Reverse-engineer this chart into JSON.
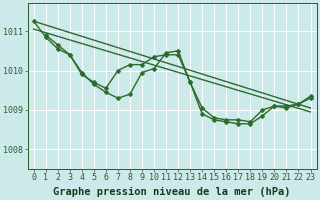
{
  "bg_color": "#cceaea",
  "grid_color": "#b0d8d8",
  "line_color": "#2d6a2d",
  "title": "Graphe pression niveau de la mer (hPa)",
  "xlim": [
    -0.5,
    23.5
  ],
  "ylim": [
    1007.5,
    1011.7
  ],
  "yticks": [
    1008,
    1009,
    1010,
    1011
  ],
  "xticks": [
    0,
    1,
    2,
    3,
    4,
    5,
    6,
    7,
    8,
    9,
    10,
    11,
    12,
    13,
    14,
    15,
    16,
    17,
    18,
    19,
    20,
    21,
    22,
    23
  ],
  "straight_lines": [
    [
      [
        0,
        1011.25
      ],
      [
        23,
        1009.05
      ]
    ],
    [
      [
        0,
        1011.05
      ],
      [
        23,
        1008.95
      ]
    ]
  ],
  "marked_series": [
    {
      "x": [
        0,
        1,
        2,
        3,
        4,
        5,
        6,
        7,
        8,
        9,
        10,
        11,
        12,
        13,
        14,
        15,
        16,
        17,
        18,
        19,
        20,
        21,
        22,
        23
      ],
      "y": [
        1011.25,
        1010.85,
        1010.55,
        1010.4,
        1009.9,
        1009.7,
        1009.55,
        1010.0,
        1010.15,
        1010.15,
        1010.35,
        1010.4,
        1010.4,
        1009.7,
        1009.05,
        1008.8,
        1008.75,
        1008.75,
        1008.7,
        1009.0,
        1009.1,
        1009.1,
        1009.15,
        1009.3
      ]
    },
    {
      "x": [
        1,
        2,
        3,
        4,
        5,
        6,
        7,
        8,
        9,
        10,
        11,
        12,
        13,
        14,
        15,
        16,
        17,
        18,
        19,
        20,
        21,
        22,
        23
      ],
      "y": [
        1010.9,
        1010.65,
        1010.4,
        1009.95,
        1009.65,
        1009.45,
        1009.3,
        1009.4,
        1009.95,
        1010.05,
        1010.45,
        1010.5,
        1009.7,
        1008.9,
        1008.75,
        1008.7,
        1008.65,
        1008.65,
        1008.85,
        1009.1,
        1009.05,
        1009.15,
        1009.35
      ]
    }
  ],
  "tick_fontsize": 6,
  "title_fontsize": 7.5,
  "linewidth": 1.0,
  "markersize": 2.5
}
